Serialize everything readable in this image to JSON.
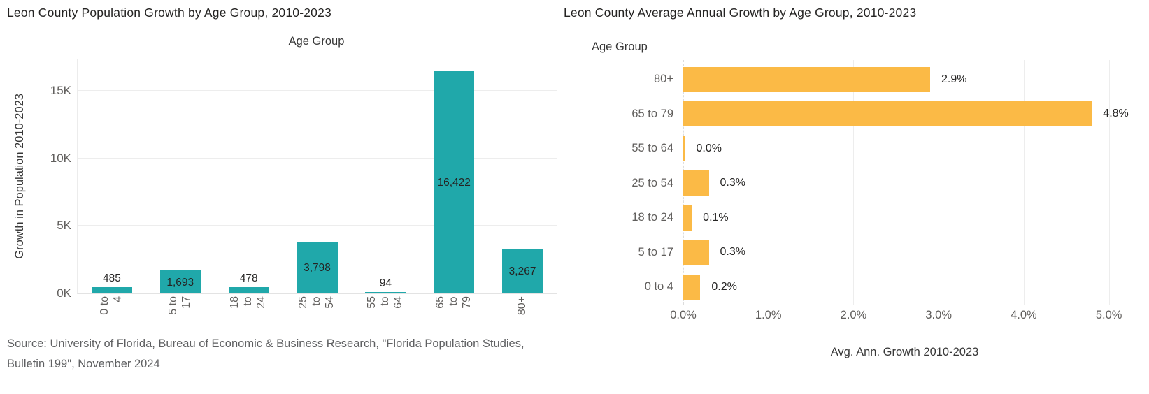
{
  "colors": {
    "teal_bar": "#20A8AA",
    "orange_bar": "#FBBA46",
    "title_text": "#252423",
    "tick_text": "#605E5C",
    "gridline": "#EDEDED",
    "source_text": "#5F6062"
  },
  "chart_data": [
    {
      "type": "bar",
      "title": "Leon County Population Growth by Age Group, 2010-2023",
      "xlabel": "Age Group",
      "ylabel": "Growth in Population 2010-2023",
      "categories": [
        "0 to 4",
        "5 to 17",
        "18 to 24",
        "25 to 54",
        "55 to 64",
        "65 to 79",
        "80+"
      ],
      "category_label_lines": [
        [
          "0 to",
          "4"
        ],
        [
          "5 to",
          "17"
        ],
        [
          "18",
          "to",
          "24"
        ],
        [
          "25",
          "to",
          "54"
        ],
        [
          "55",
          "to",
          "64"
        ],
        [
          "65",
          "to",
          "79"
        ],
        [
          "80+"
        ]
      ],
      "values": [
        485,
        1693,
        478,
        3798,
        94,
        16422,
        3267
      ],
      "value_labels": [
        "485",
        "1,693",
        "478",
        "3,798",
        "94",
        "16,422",
        "3,267"
      ],
      "ylim": [
        0,
        17320
      ],
      "yticks": [
        {
          "v": 0,
          "label": "0K"
        },
        {
          "v": 5000,
          "label": "5K"
        },
        {
          "v": 10000,
          "label": "10K"
        },
        {
          "v": 15000,
          "label": "15K"
        }
      ],
      "grid": true,
      "legend": "none",
      "bar_color": "#20A8AA",
      "source": "Source: University of Florida, Bureau of Economic & Business Research, \"Florida Population Studies, Bulletin 199\", November 2024"
    },
    {
      "type": "bar-horizontal",
      "title": "Leon County Average Annual Growth by Age Group, 2010-2023",
      "xlabel": "Avg. Ann. Growth 2010-2023",
      "ylabel": "Age Group",
      "categories": [
        "80+",
        "65 to 79",
        "55 to 64",
        "25 to 54",
        "18 to 24",
        "5 to 17",
        "0 to 4"
      ],
      "values": [
        2.9,
        4.8,
        0.0,
        0.3,
        0.1,
        0.3,
        0.2
      ],
      "value_labels": [
        "2.9%",
        "4.8%",
        "0.0%",
        "0.3%",
        "0.1%",
        "0.3%",
        "0.2%"
      ],
      "xlim": [
        0,
        5.2
      ],
      "xticks": [
        {
          "v": 0,
          "label": "0.0%"
        },
        {
          "v": 1,
          "label": "1.0%"
        },
        {
          "v": 2,
          "label": "2.0%"
        },
        {
          "v": 3,
          "label": "3.0%"
        },
        {
          "v": 4,
          "label": "4.0%"
        },
        {
          "v": 5,
          "label": "5.0%"
        }
      ],
      "grid": true,
      "legend": "none",
      "bar_color": "#FBBA46"
    }
  ]
}
